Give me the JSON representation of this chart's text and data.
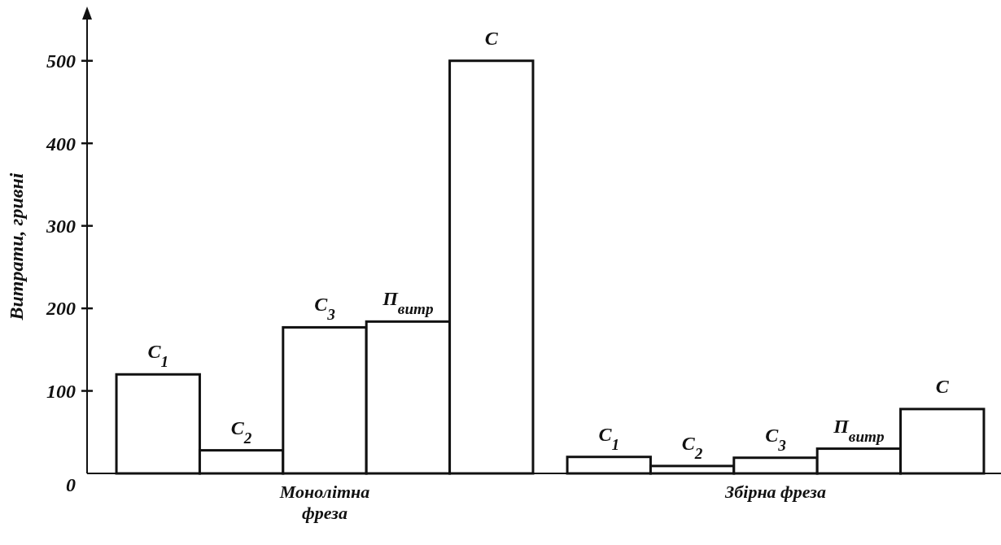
{
  "chart_data": {
    "type": "bar",
    "ylabel": "Витрати, гривні",
    "categories": [
      "Монолітна\nфреза",
      "Збірна фреза"
    ],
    "ylim": [
      0,
      550
    ],
    "yticks": [
      0,
      100,
      200,
      300,
      400,
      500
    ],
    "grid": false,
    "series": [
      {
        "name": "C$_{1}$",
        "color": "#ffffff",
        "values": [
          120,
          20
        ]
      },
      {
        "name": "C$_{2}$",
        "color": "#ffffff",
        "values": [
          28,
          9
        ]
      },
      {
        "name": "C$_{3}$",
        "color": "#ffffff",
        "values": [
          177,
          19
        ]
      },
      {
        "name": "П$_{витр}$",
        "color": "#ffffff",
        "values": [
          184,
          30
        ]
      },
      {
        "name": "C",
        "color": "#ffffff",
        "values": [
          500,
          78
        ]
      }
    ]
  }
}
